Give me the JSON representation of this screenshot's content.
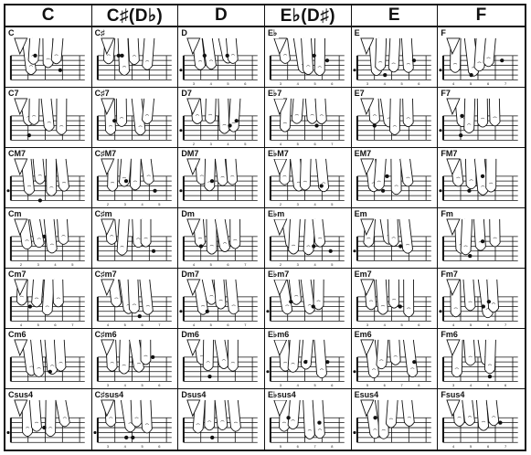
{
  "header": [
    "C",
    "C♯(D♭)",
    "D",
    "E♭(D♯)",
    "E",
    "F"
  ],
  "rows": [
    [
      "C",
      "C♯",
      "D",
      "E♭",
      "E",
      "F"
    ],
    [
      "C7",
      "C♯7",
      "D7",
      "E♭7",
      "E7",
      "F7"
    ],
    [
      "CM7",
      "C♯M7",
      "DM7",
      "E♭M7",
      "EM7",
      "FM7"
    ],
    [
      "Cm",
      "C♯m",
      "Dm",
      "E♭m",
      "Em",
      "Fm"
    ],
    [
      "Cm7",
      "C♯m7",
      "Dm7",
      "E♭m7",
      "Em7",
      "Fm7"
    ],
    [
      "Cm6",
      "C♯m6",
      "Dm6",
      "E♭m6",
      "Em6",
      "Fm6"
    ],
    [
      "Csus4",
      "C♯sus4",
      "Dsus4",
      "E♭sus4",
      "Esus4",
      "Fsus4"
    ]
  ],
  "fret_numbers": [
    "2",
    "3",
    "4",
    "5",
    "6",
    "7",
    "8",
    "9"
  ],
  "colors": {
    "ink": "#111111",
    "paper": "#ffffff",
    "finger_fill": "#ffffff"
  }
}
